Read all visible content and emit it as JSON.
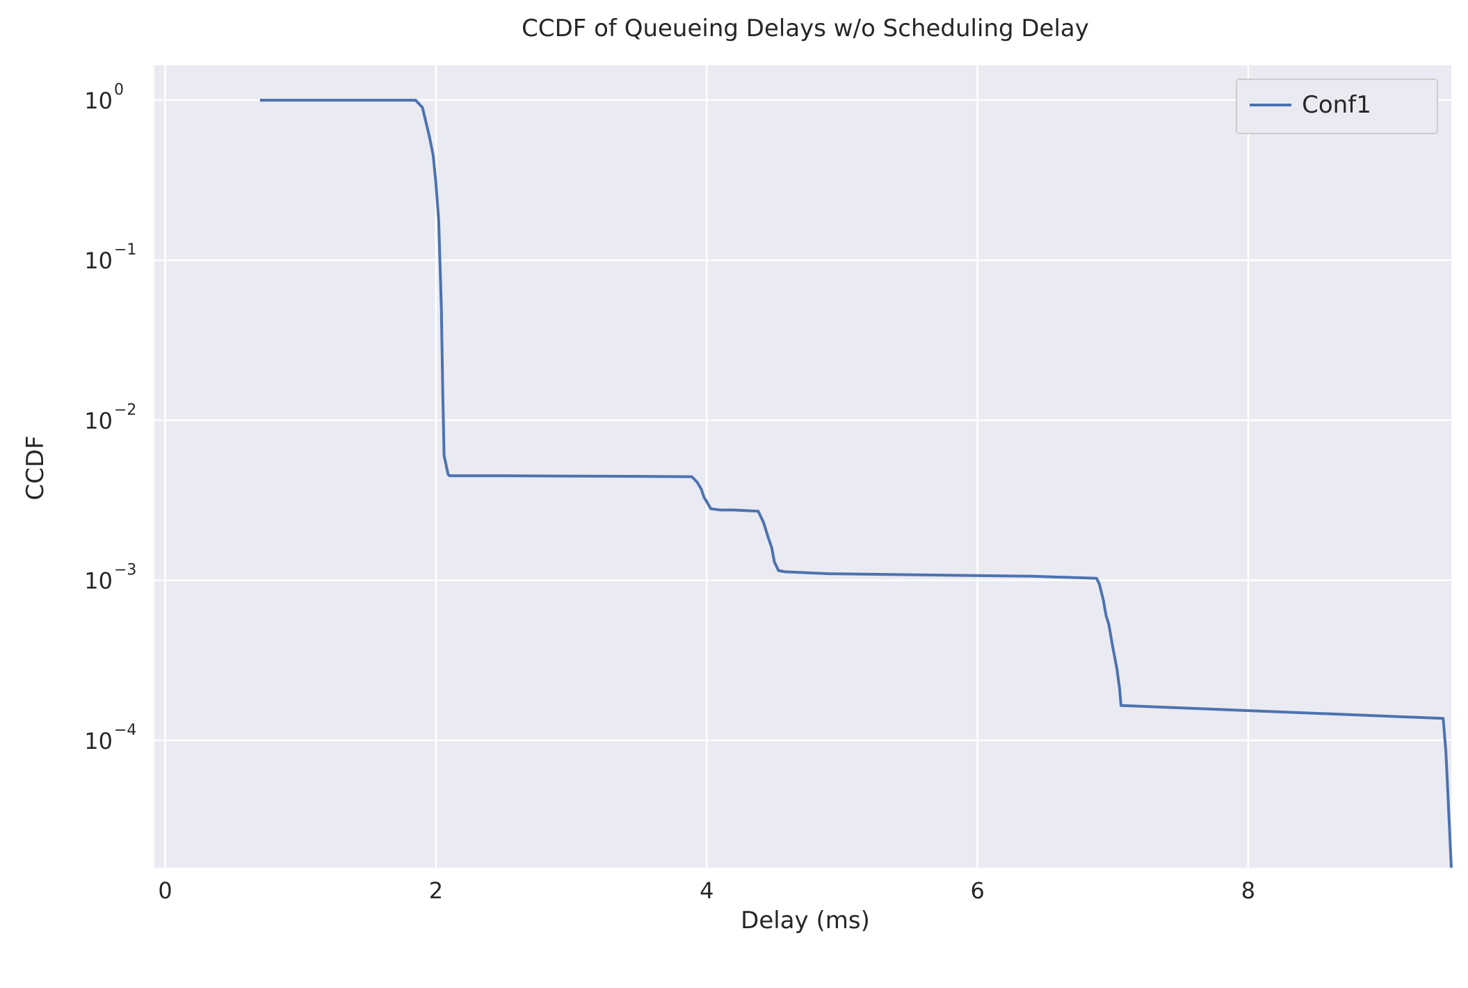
{
  "chart_data": {
    "type": "line",
    "title": "CCDF of Queueing Delays w/o Scheduling Delay",
    "xlabel": "Delay (ms)",
    "ylabel": "CCDF",
    "xlim": [
      -0.08,
      9.5
    ],
    "ylim": [
      1.6e-05,
      1.65
    ],
    "yscale": "log",
    "grid": true,
    "legend_position": "top-right",
    "x_ticks": [
      {
        "value": 0,
        "label": "0"
      },
      {
        "value": 2,
        "label": "2"
      },
      {
        "value": 4,
        "label": "4"
      },
      {
        "value": 6,
        "label": "6"
      },
      {
        "value": 8,
        "label": "8"
      }
    ],
    "y_ticks": [
      {
        "value": 1,
        "base": "10",
        "exp": "0"
      },
      {
        "value": 0.1,
        "base": "10",
        "exp": "−1"
      },
      {
        "value": 0.01,
        "base": "10",
        "exp": "−2"
      },
      {
        "value": 0.001,
        "base": "10",
        "exp": "−3"
      },
      {
        "value": 0.0001,
        "base": "10",
        "exp": "−4"
      }
    ],
    "series": [
      {
        "name": "Conf1",
        "color": "#4c72b0",
        "x": [
          0.7,
          1.85,
          1.9,
          1.95,
          1.98,
          2.0,
          2.02,
          2.04,
          2.05,
          2.06,
          2.07,
          2.08,
          2.09,
          2.1,
          2.12,
          2.5,
          3.0,
          3.5,
          3.89,
          3.93,
          3.96,
          3.98,
          4.0,
          4.03,
          4.1,
          4.2,
          4.38,
          4.42,
          4.45,
          4.48,
          4.5,
          4.53,
          4.58,
          4.9,
          6.4,
          6.88,
          6.9,
          6.93,
          6.95,
          6.97,
          7.0,
          7.03,
          7.05,
          7.06,
          7.07,
          9.44,
          9.46,
          9.47,
          9.5
        ],
        "y": [
          1.0,
          1.0,
          0.9,
          0.6,
          0.45,
          0.3,
          0.18,
          0.05,
          0.015,
          0.006,
          0.0055,
          0.005,
          0.0046,
          0.0045,
          0.0045,
          0.0045,
          0.00448,
          0.00446,
          0.00444,
          0.0041,
          0.0037,
          0.0033,
          0.0031,
          0.0028,
          0.00275,
          0.00275,
          0.0027,
          0.0023,
          0.0019,
          0.0016,
          0.0013,
          0.00115,
          0.00113,
          0.0011,
          0.00106,
          0.00103,
          0.00095,
          0.00075,
          0.0006,
          0.00053,
          0.00038,
          0.00028,
          0.00021,
          0.000165,
          0.000165,
          0.000137,
          8.5e-05,
          5.6e-05,
          1.6e-05
        ]
      }
    ]
  }
}
